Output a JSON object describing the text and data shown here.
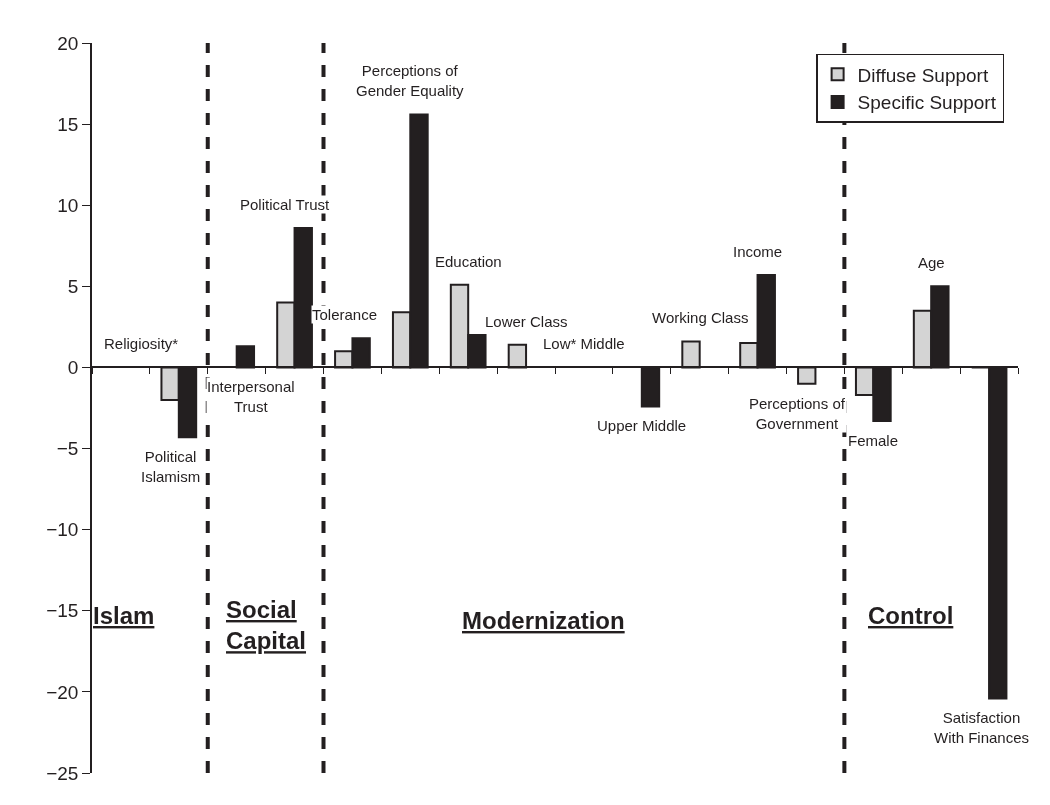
{
  "chart_data": {
    "type": "bar",
    "categories": [
      "Religiosity*",
      "Political Islamism",
      "Interpersonal Trust",
      "Political Trust",
      "Tolerance",
      "Perceptions of Gender Equality",
      "Education",
      "Lower Class",
      "Low* Middle",
      "Upper Middle",
      "Working Class",
      "Income",
      "Perceptions of Government",
      "Female",
      "Age",
      "Satisfaction With Finances"
    ],
    "series": [
      {
        "name": "Diffuse Support",
        "color": "#d4d4d4",
        "values": [
          null,
          -2.0,
          null,
          4.0,
          1.0,
          3.4,
          5.1,
          1.4,
          null,
          null,
          1.6,
          1.5,
          -1.0,
          -1.7,
          3.5,
          0
        ]
      },
      {
        "name": "Specific Support",
        "color": "#231f20",
        "values": [
          null,
          -4.3,
          1.3,
          8.6,
          1.8,
          15.6,
          2.0,
          null,
          null,
          -2.4,
          null,
          5.7,
          null,
          -3.3,
          5.0,
          -20.4
        ]
      }
    ],
    "ylim": [
      -25,
      20
    ],
    "yticks": [
      -25,
      -20,
      -15,
      -10,
      -5,
      0,
      5,
      10,
      15,
      20
    ],
    "tick_labels": "y",
    "grid": false,
    "legend": "top right",
    "annotations": [
      "Islam",
      "Social Capital",
      "Modernization",
      "Control"
    ]
  }
}
